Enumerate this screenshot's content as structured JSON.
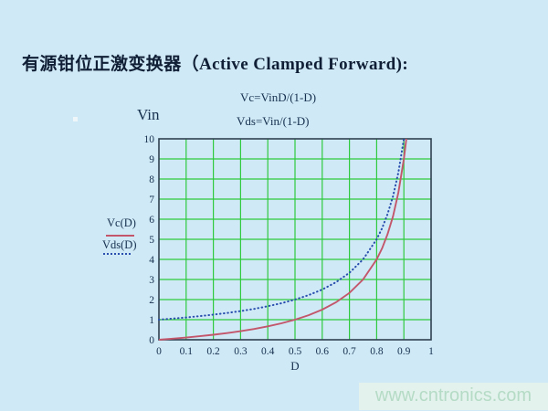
{
  "page": {
    "title": "有源钳位正激变换器（Active Clamped Forward):"
  },
  "watermark": {
    "text": "www.cntronics.com"
  },
  "colors": {
    "background": "#cfe9f6",
    "grid": "#2fca3e",
    "frame": "#2e4152",
    "text": "#16304f",
    "vc_line": "#c4566b",
    "vds_line": "#2a4fae",
    "watermark_bg": "#e3f2ec",
    "watermark_text": "#b5dbc6"
  },
  "chart_data": {
    "type": "line",
    "title": "",
    "xlabel": "D",
    "ylabel": "Vin",
    "xlim": [
      0,
      1
    ],
    "ylim": [
      0,
      10
    ],
    "grid": true,
    "legend_position": "left",
    "annotations": [
      "Vc=VinD/(1-D)",
      "Vds=Vin/(1-D)"
    ],
    "x_ticks": [
      0,
      0.1,
      0.2,
      0.3,
      0.4,
      0.5,
      0.6,
      0.7,
      0.8,
      0.9,
      1
    ],
    "x_tick_labels": [
      "0",
      "0.1",
      "0.2",
      "0.3",
      "0.4",
      "0.5",
      "0.6",
      "0.7",
      "0.8",
      "0.9",
      "1"
    ],
    "y_ticks": [
      0,
      1,
      2,
      3,
      4,
      5,
      6,
      7,
      8,
      9,
      10
    ],
    "y_tick_labels": [
      "0",
      "1",
      "2",
      "3",
      "4",
      "5",
      "6",
      "7",
      "8",
      "9",
      "10"
    ],
    "series": [
      {
        "name": "Vc(D)",
        "formula": "Vc = Vin·D/(1-D), in units of Vin",
        "style": "solid",
        "color": "#c4566b",
        "x": [
          0,
          0.05,
          0.1,
          0.15,
          0.2,
          0.25,
          0.3,
          0.35,
          0.4,
          0.45,
          0.5,
          0.55,
          0.6,
          0.65,
          0.7,
          0.75,
          0.8,
          0.82,
          0.84,
          0.86,
          0.88,
          0.9,
          0.909
        ],
        "y": [
          0,
          0.053,
          0.111,
          0.176,
          0.25,
          0.333,
          0.429,
          0.538,
          0.667,
          0.818,
          1,
          1.222,
          1.5,
          1.857,
          2.333,
          3,
          4,
          4.556,
          5.25,
          6.143,
          7.333,
          9,
          10
        ]
      },
      {
        "name": "Vds(D)",
        "formula": "Vds = Vin/(1-D), in units of Vin",
        "style": "dotted",
        "color": "#2a4fae",
        "x": [
          0,
          0.05,
          0.1,
          0.15,
          0.2,
          0.25,
          0.3,
          0.35,
          0.4,
          0.45,
          0.5,
          0.55,
          0.6,
          0.65,
          0.7,
          0.75,
          0.8,
          0.82,
          0.84,
          0.86,
          0.88,
          0.9
        ],
        "y": [
          1,
          1.053,
          1.111,
          1.176,
          1.25,
          1.333,
          1.429,
          1.538,
          1.667,
          1.818,
          2,
          2.222,
          2.5,
          2.857,
          3.333,
          4,
          5,
          5.556,
          6.25,
          7.143,
          8.333,
          10
        ]
      }
    ]
  }
}
